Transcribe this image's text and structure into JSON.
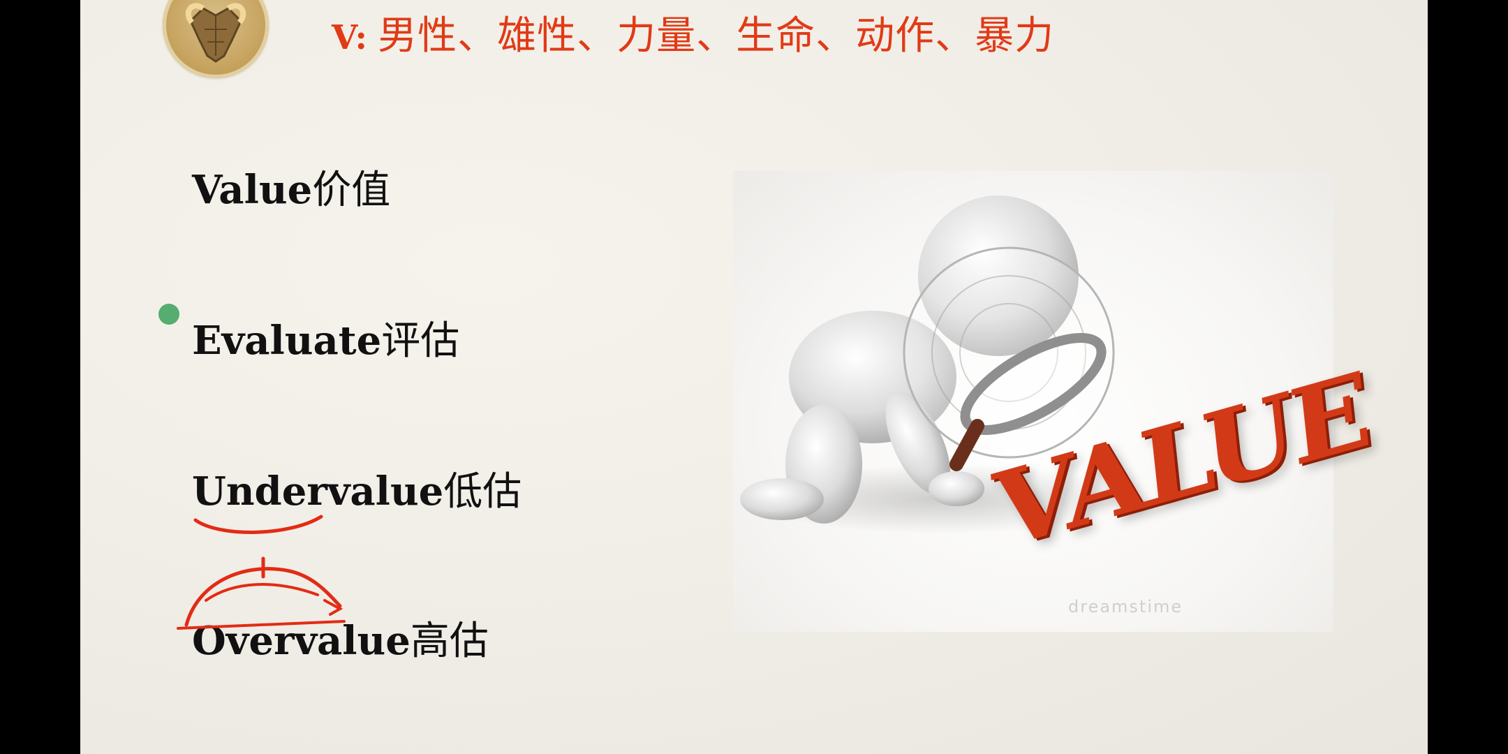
{
  "header": {
    "title_lead": "V:",
    "title_text": "男性、雄性、力量、生命、动作、暴力",
    "accent_color": "#e13a16",
    "emblem_icon": "ram-head-icon"
  },
  "terms": [
    {
      "en": "Value",
      "zh": "价值"
    },
    {
      "en": "Evaluate",
      "zh": "评估"
    },
    {
      "en": "Undervalue",
      "zh": "低估"
    },
    {
      "en": "Overvalue",
      "zh": "高估"
    }
  ],
  "image": {
    "word": "VALUE",
    "watermark": "dreamstime",
    "icon": "figure-with-magnifier-illustration"
  },
  "annotations": {
    "pointer_color": "#3aa15a",
    "ink_color": "#e32b14"
  }
}
